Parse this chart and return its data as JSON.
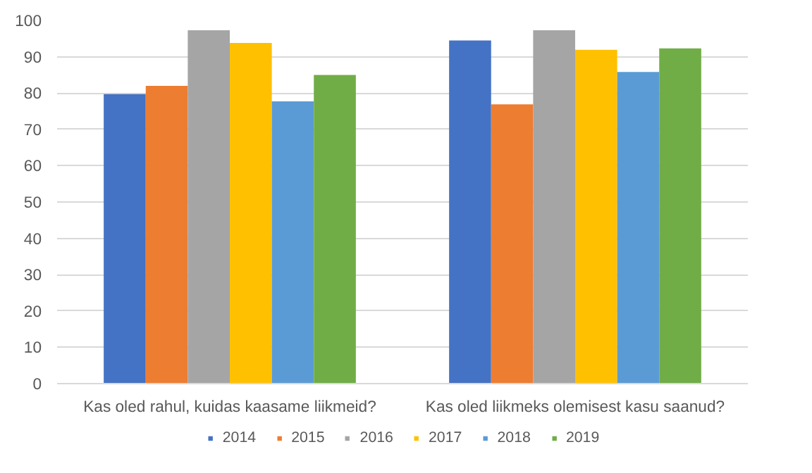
{
  "chart_data": {
    "type": "bar",
    "categories": [
      "Kas oled rahul, kuidas kaasame liikmeid?",
      "Kas oled liikmeks olemisest kasu saanud?"
    ],
    "series": [
      {
        "name": "2014",
        "color": "#4472c4",
        "values": [
          79.7,
          94.5
        ]
      },
      {
        "name": "2015",
        "color": "#ed7d31",
        "values": [
          82,
          76.9
        ]
      },
      {
        "name": "2016",
        "color": "#a5a5a5",
        "values": [
          97.3,
          97.3
        ]
      },
      {
        "name": "2017",
        "color": "#ffc000",
        "values": [
          93.8,
          91.9
        ]
      },
      {
        "name": "2018",
        "color": "#5b9bd5",
        "values": [
          77.7,
          85.8
        ]
      },
      {
        "name": "2019",
        "color": "#70ad47",
        "values": [
          85,
          92.3
        ]
      }
    ],
    "ylim": [
      0,
      100
    ],
    "yticks": [
      0,
      10,
      20,
      30,
      40,
      50,
      60,
      70,
      80,
      90,
      100
    ],
    "grid": "y",
    "legend": "bottom"
  }
}
